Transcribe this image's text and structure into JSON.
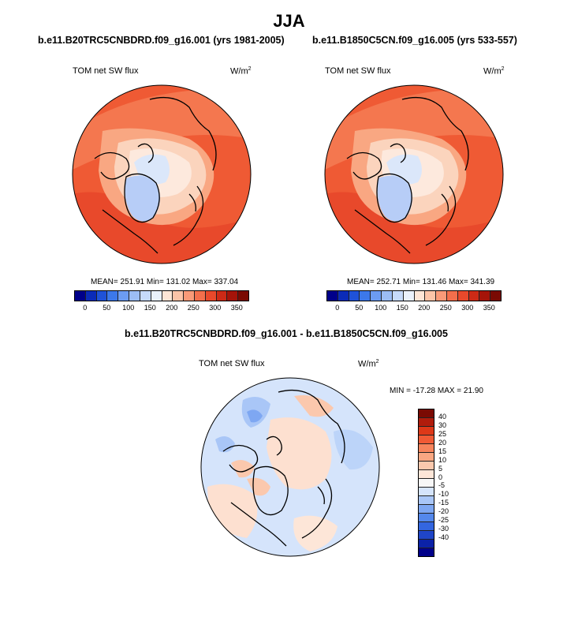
{
  "title": "JJA",
  "left_panel": {
    "case": "b.e11.B20TRC5CNBDRD.f09_g16.001 (yrs 1981-2005)",
    "variable": "TOM net SW flux",
    "unit_base": "W/m",
    "unit_exp": "2",
    "stats": "MEAN= 251.91  Min= 131.02  Max= 337.04"
  },
  "right_panel": {
    "case": "b.e11.B1850C5CN.f09_g16.005 (yrs 533-557)",
    "variable": "TOM net SW flux",
    "unit_base": "W/m",
    "unit_exp": "2",
    "stats": "MEAN= 252.71  Min= 131.46  Max= 341.39"
  },
  "diff_panel": {
    "case": "b.e11.B20TRC5CNBDRD.f09_g16.001 - b.e11.B1850C5CN.f09_g16.005",
    "variable": "TOM net SW flux",
    "unit_base": "W/m",
    "unit_exp": "2",
    "stats": "MIN = -17.28 MAX =  21.90"
  },
  "abs_colorbar": {
    "labels": [
      "0",
      "50",
      "100",
      "150",
      "200",
      "250",
      "300",
      "350"
    ],
    "colors": [
      "#00008a",
      "#0b2bb8",
      "#1f52d8",
      "#3c78ea",
      "#6c9cf2",
      "#9cbdf5",
      "#c6dafa",
      "#eaf1fb",
      "#fde5d6",
      "#fbc4a8",
      "#f99a78",
      "#f36f4c",
      "#e8492b",
      "#cc2a16",
      "#a51409",
      "#7a0a03"
    ]
  },
  "diff_colorbar": {
    "labels": [
      "40",
      "30",
      "25",
      "20",
      "15",
      "10",
      "5",
      "0",
      "-5",
      "-10",
      "-15",
      "-20",
      "-25",
      "-30",
      "-40"
    ],
    "colors": [
      "#7a0a03",
      "#b01c0c",
      "#dd3818",
      "#f05a35",
      "#f6845c",
      "#f9a782",
      "#fbc8ad",
      "#fde6d8",
      "#f7f7f7",
      "#d5e4fb",
      "#a9c6f7",
      "#7ea7f2",
      "#5488ec",
      "#3366e0",
      "#1f45c8",
      "#0b22a8",
      "#00008a"
    ]
  }
}
